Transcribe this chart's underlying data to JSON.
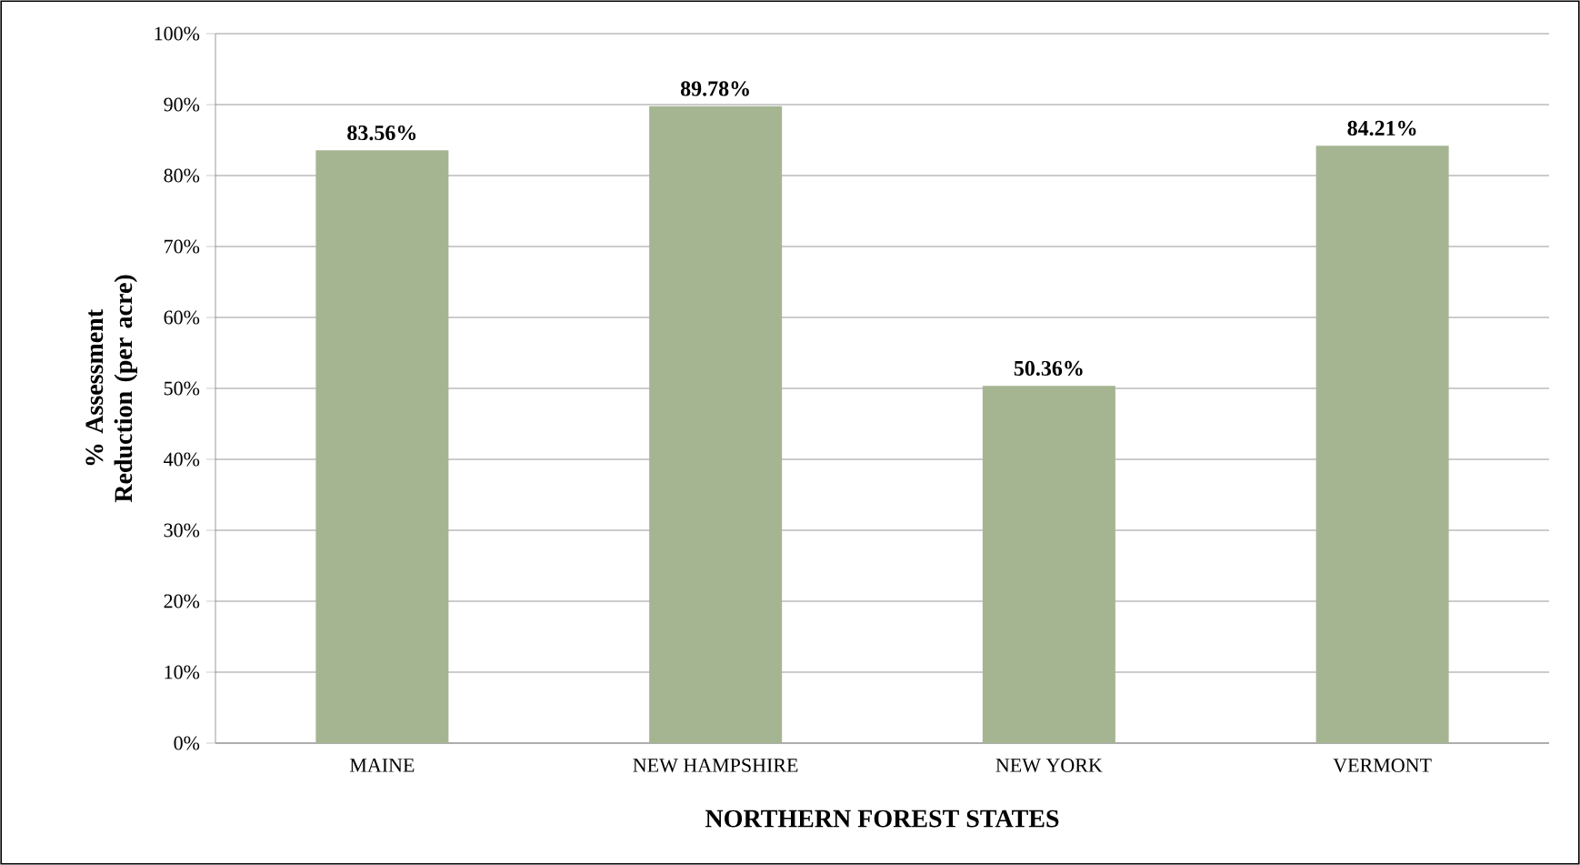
{
  "chart_data": {
    "type": "bar",
    "xlabel": "NORTHERN FOREST STATES",
    "ylabel": "% Assessment Reduction (per acre)",
    "categories": [
      "MAINE",
      "NEW HAMPSHIRE",
      "NEW YORK",
      "VERMONT"
    ],
    "values": [
      83.56,
      89.78,
      50.36,
      84.21
    ],
    "value_labels": [
      "83.56%",
      "89.78%",
      "50.36%",
      "84.21%"
    ],
    "color": "#a5b592",
    "ylim": [
      0,
      100
    ],
    "yticks": [
      {
        "value": 0,
        "label": "0%"
      },
      {
        "value": 10,
        "label": "10%"
      },
      {
        "value": 20,
        "label": "20%"
      },
      {
        "value": 30,
        "label": "30%"
      },
      {
        "value": 40,
        "label": "40%"
      },
      {
        "value": 50,
        "label": "50%"
      },
      {
        "value": 60,
        "label": "60%"
      },
      {
        "value": 70,
        "label": "70%"
      },
      {
        "value": 80,
        "label": "80%"
      },
      {
        "value": 90,
        "label": "90%"
      },
      {
        "value": 100,
        "label": "100%"
      }
    ],
    "grid": "y"
  }
}
